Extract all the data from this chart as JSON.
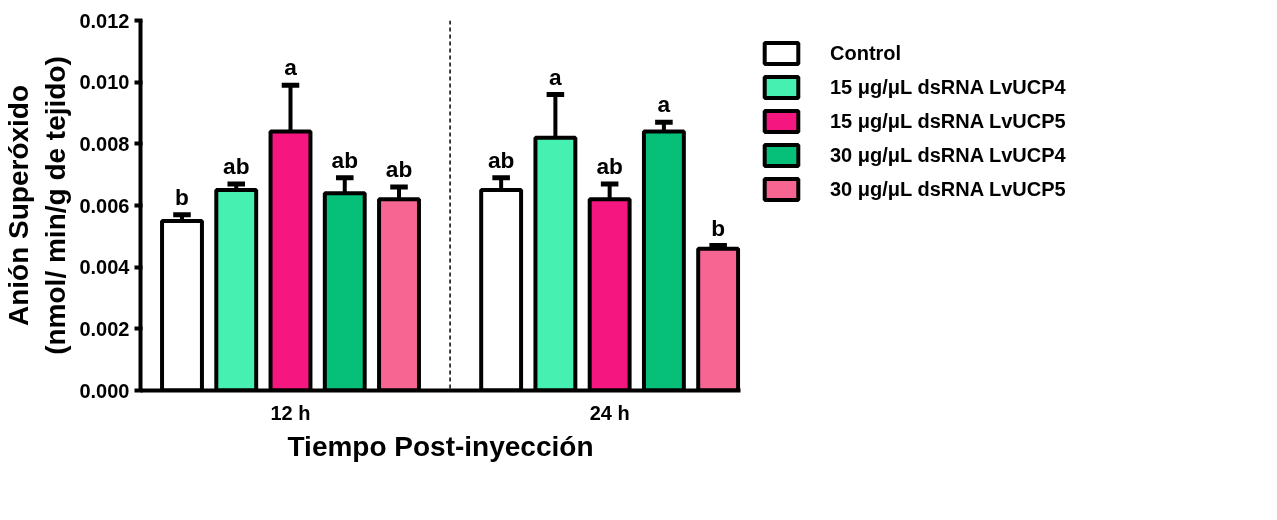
{
  "chart_data": {
    "type": "bar",
    "xlabel": "Tiempo Post-inyección",
    "ylabel": "Anión Superóxido\n(nmol/ min/g de tejido)",
    "categories": [
      "12 h",
      "24 h"
    ],
    "series": [
      {
        "name": "Control",
        "color": "#ffffff",
        "values": [
          0.0055,
          0.0065
        ],
        "errors": [
          0.0002,
          0.0004
        ],
        "value_labels": [
          "b",
          "ab"
        ]
      },
      {
        "name": "15 μg/μL dsRNA LvUCP4",
        "color": "#45f0b0",
        "values": [
          0.0065,
          0.0082
        ],
        "errors": [
          0.0002,
          0.0014
        ],
        "value_labels": [
          "ab",
          "a"
        ]
      },
      {
        "name": "15 μg/μL dsRNA LvUCP5",
        "color": "#f5177f",
        "values": [
          0.0084,
          0.0062
        ],
        "errors": [
          0.0015,
          0.0005
        ],
        "value_labels": [
          "a",
          "ab"
        ]
      },
      {
        "name": "30 μg/μL dsRNA LvUCP4",
        "color": "#06c07a",
        "values": [
          0.0064,
          0.0084
        ],
        "errors": [
          0.0005,
          0.0003
        ],
        "value_labels": [
          "ab",
          "a"
        ]
      },
      {
        "name": "30 μg/μL dsRNA LvUCP5",
        "color": "#f76693",
        "values": [
          0.0062,
          0.0046
        ],
        "errors": [
          0.0004,
          0.0001
        ],
        "value_labels": [
          "ab",
          "b"
        ]
      }
    ],
    "ylim": [
      0,
      0.012
    ],
    "yticks": [
      {
        "value": 0,
        "label": "0.000"
      },
      {
        "value": 0.002,
        "label": "0.002"
      },
      {
        "value": 0.004,
        "label": "0.004"
      },
      {
        "value": 0.006,
        "label": "0.006"
      },
      {
        "value": 0.008,
        "label": "0.008"
      },
      {
        "value": 0.01,
        "label": "0.010"
      },
      {
        "value": 0.012,
        "label": "0.012"
      }
    ],
    "grid": false,
    "legend": "right"
  }
}
